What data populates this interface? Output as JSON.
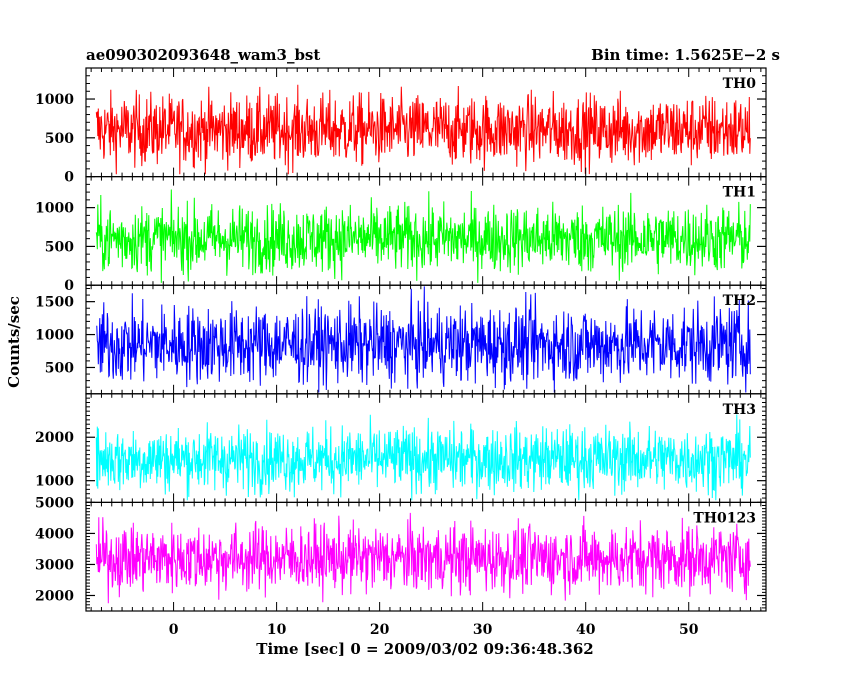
{
  "chart_data": {
    "type": "line",
    "title_left": "ae090302093648_wam3_bst",
    "title_right": "Bin time: 1.5625E−2 s",
    "xlabel": "Time [sec] 0 = 2009/03/02 09:36:48.362",
    "ylabel": "Counts/sec",
    "xlim": [
      -8.5,
      57.5
    ],
    "x_ticks": [
      0,
      10,
      20,
      30,
      40,
      50
    ],
    "x_range_data": [
      -7.5,
      56.0
    ],
    "bin_time": 0.015625,
    "panels": [
      {
        "name": "TH0",
        "color": "#ff0000",
        "ylim": [
          0,
          1400
        ],
        "y_ticks": [
          0,
          500,
          1000
        ],
        "baseline": 600,
        "spread": 230,
        "min": 30,
        "max": 1390
      },
      {
        "name": "TH1",
        "color": "#00ff00",
        "ylim": [
          0,
          1400
        ],
        "y_ticks": [
          0,
          500,
          1000
        ],
        "baseline": 600,
        "spread": 220,
        "min": 30,
        "max": 1380
      },
      {
        "name": "TH2",
        "color": "#0000ff",
        "ylim": [
          100,
          1750
        ],
        "y_ticks": [
          500,
          1000,
          1500
        ],
        "baseline": 850,
        "spread": 300,
        "min": 120,
        "max": 1740
      },
      {
        "name": "TH3",
        "color": "#00ffff",
        "ylim": [
          500,
          3000
        ],
        "y_ticks": [
          1000,
          2000
        ],
        "baseline": 1500,
        "spread": 380,
        "min": 550,
        "max": 2950
      },
      {
        "name": "TH0123",
        "color": "#ff00ff",
        "ylim": [
          1500,
          5000
        ],
        "y_ticks": [
          2000,
          3000,
          4000,
          5000
        ],
        "baseline": 3200,
        "spread": 550,
        "min": 1550,
        "max": 4950
      }
    ]
  }
}
